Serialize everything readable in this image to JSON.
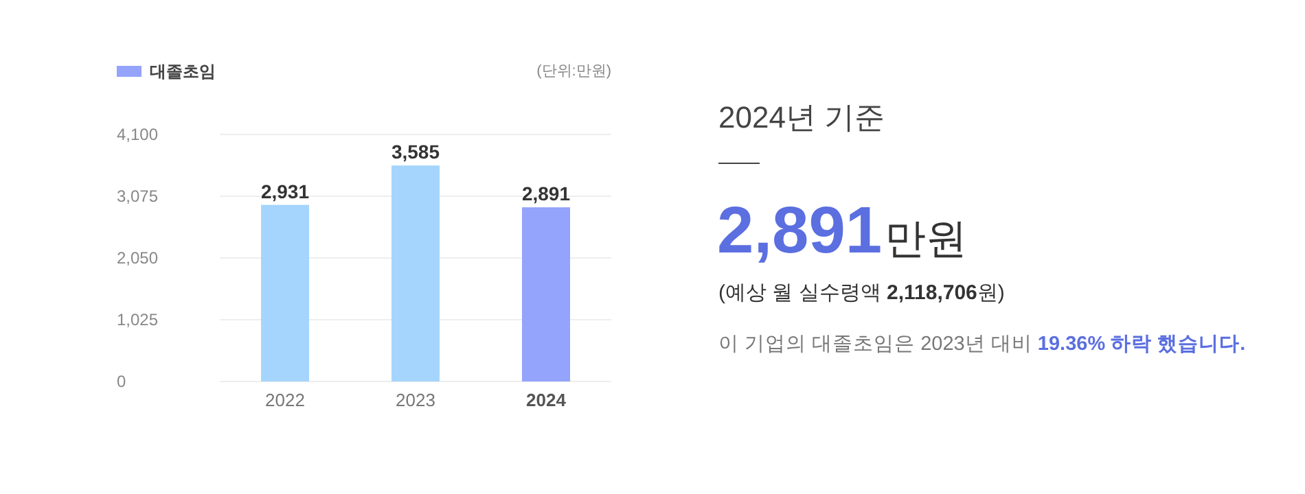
{
  "chart_data": [
    {
      "type": "bar",
      "categories": [
        "2022",
        "2023",
        "2024"
      ],
      "series": [
        {
          "name": "대졸초임",
          "color": "#94a3fb",
          "colors": [
            "#a5d5fd",
            "#a5d5fd",
            "#94a3fb"
          ],
          "values": [
            2931,
            3585,
            2891
          ],
          "value_labels": [
            "2,931",
            "3,585",
            "2,891"
          ]
        }
      ],
      "ylim": [
        0,
        4100
      ],
      "yticks": [
        {
          "value": 0,
          "label": "0"
        },
        {
          "value": 1025,
          "label": "1,025"
        },
        {
          "value": 2050,
          "label": "2,050"
        },
        {
          "value": 3075,
          "label": "3,075"
        },
        {
          "value": 4100,
          "label": "4,100"
        }
      ],
      "grid": "y",
      "legend": "top left",
      "annotations": [
        "(단위:만원)"
      ]
    },
    {
      "type": "other",
      "title": "2024년 기준",
      "annotations": [
        "2,891만원",
        "(예상 월 실수령액 2,118,706원)",
        "이 기업의 대졸초임은 2023년 대비 19.36% 하락 했습니다."
      ]
    }
  ]
}
